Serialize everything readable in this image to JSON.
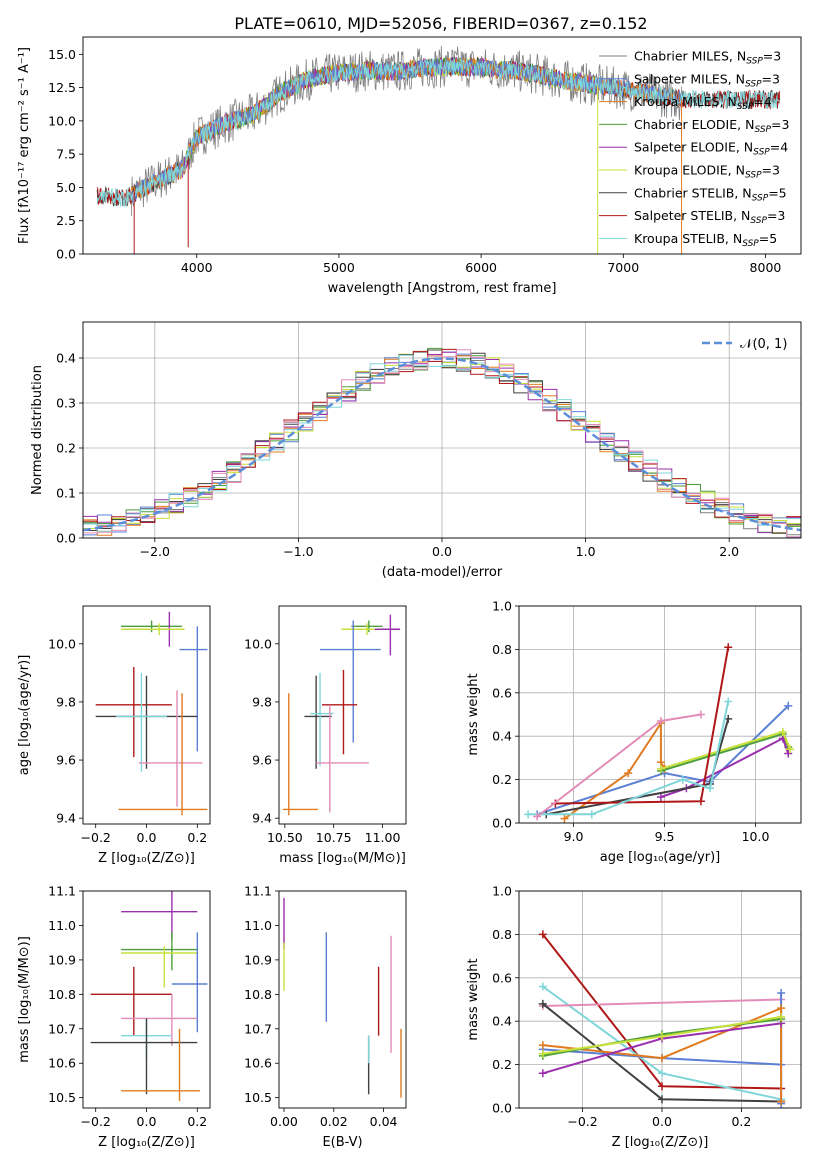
{
  "figure_title": "PLATE=0610, MJD=52056, FIBERID=0367, z=0.152",
  "colors": {
    "Chabrier MILES": "#808080",
    "Salpeter MILES": "#5b7fd4",
    "Kroupa MILES": "#e07b20",
    "Chabrier ELODIE": "#4d9e3c",
    "Salpeter ELODIE": "#9b2fae",
    "Kroupa ELODIE": "#c9e03a",
    "Chabrier STELIB": "#404040",
    "Salpeter STELIB": "#b01818",
    "Kroupa STELIB": "#7fd6d9",
    "pink": "#e38cb8",
    "normal_curve": "#5b8fd9"
  },
  "chart_data": [
    {
      "id": "spectrum",
      "type": "line",
      "xlabel": "wavelength [Angstrom, rest frame]",
      "ylabel": "Flux [fλ10⁻¹⁷ erg cm⁻² s⁻¹ A⁻¹]",
      "xlim": [
        3200,
        8250
      ],
      "ylim": [
        0,
        16.3
      ],
      "xticks": [
        4000,
        5000,
        6000,
        7000,
        8000
      ],
      "yticks": [
        0.0,
        2.5,
        5.0,
        7.5,
        10.0,
        12.5,
        15.0
      ],
      "legend_position": "right",
      "legend": [
        {
          "label": "Chabrier MILES, N",
          "sub": "SSP",
          "suffix": "=3",
          "key": "Chabrier MILES"
        },
        {
          "label": "Salpeter MILES, N",
          "sub": "SSP",
          "suffix": "=3",
          "key": "Salpeter MILES"
        },
        {
          "label": "Kroupa MILES, N",
          "sub": "SSP",
          "suffix": "=4",
          "key": "Kroupa MILES"
        },
        {
          "label": "Chabrier ELODIE, N",
          "sub": "SSP",
          "suffix": "=3",
          "key": "Chabrier ELODIE"
        },
        {
          "label": "Salpeter ELODIE, N",
          "sub": "SSP",
          "suffix": "=4",
          "key": "Salpeter ELODIE"
        },
        {
          "label": "Kroupa ELODIE, N",
          "sub": "SSP",
          "suffix": "=3",
          "key": "Kroupa ELODIE"
        },
        {
          "label": "Chabrier STELIB, N",
          "sub": "SSP",
          "suffix": "=5",
          "key": "Chabrier STELIB"
        },
        {
          "label": "Salpeter STELIB, N",
          "sub": "SSP",
          "suffix": "=3",
          "key": "Salpeter STELIB"
        },
        {
          "label": "Kroupa STELIB, N",
          "sub": "SSP",
          "suffix": "=5",
          "key": "Kroupa STELIB"
        }
      ],
      "continuum": {
        "x": [
          3300,
          3500,
          3700,
          3900,
          4000,
          4200,
          4400,
          4600,
          4800,
          5000,
          5200,
          5400,
          5600,
          5800,
          6000,
          6200,
          6400,
          6600,
          6800,
          7000,
          7200,
          7400
        ],
        "y": [
          4.4,
          4.2,
          5.4,
          6.4,
          8.8,
          9.8,
          10.5,
          12.2,
          13.2,
          13.6,
          13.8,
          13.7,
          14.0,
          14.1,
          14.0,
          13.8,
          13.5,
          13.0,
          12.7,
          12.4,
          12.0,
          11.6
        ]
      },
      "spikes": [
        {
          "x": 3560,
          "y": 0.0
        },
        {
          "x": 3940,
          "y": 0.5
        },
        {
          "x": 6820,
          "y": 0.0
        },
        {
          "x": 7410,
          "y": 0.0
        }
      ]
    },
    {
      "id": "residual_histogram",
      "type": "histogram",
      "xlabel": "(data-model)/error",
      "ylabel": "Normed distribution",
      "xlim": [
        -2.5,
        2.5
      ],
      "ylim": [
        0,
        0.48
      ],
      "xticks": [
        -2,
        -1,
        0,
        1,
        2
      ],
      "yticks": [
        0.0,
        0.1,
        0.2,
        0.3,
        0.4
      ],
      "bin_width": 0.1,
      "legend": "𝒩(0, 1)",
      "legend_position": "top-right",
      "grid": true
    },
    {
      "id": "age_vs_Z",
      "type": "errorbar",
      "xlabel": "Z [log₁₀(Z/Z⊙)]",
      "ylabel": "age  [log₁₀(age/yr)]",
      "xlim": [
        -0.25,
        0.25
      ],
      "ylim": [
        9.38,
        10.13
      ],
      "xticks": [
        -0.2,
        0.0,
        0.2
      ],
      "yticks": [
        9.4,
        9.6,
        9.8,
        10.0
      ],
      "points": [
        {
          "key": "Chabrier ELODIE",
          "x": 0.02,
          "y": 10.06,
          "xerr": [
            0.12,
            0.12
          ],
          "yerr": [
            0.02,
            0.02
          ]
        },
        {
          "key": "Salpeter ELODIE",
          "x": 0.09,
          "y": 10.05,
          "xerr": [
            0.04,
            0.04
          ],
          "yerr": [
            0.06,
            0.06
          ]
        },
        {
          "key": "Kroupa ELODIE",
          "x": 0.05,
          "y": 10.05,
          "xerr": [
            0.15,
            0.1
          ],
          "yerr": [
            0.02,
            0.02
          ]
        },
        {
          "key": "Salpeter MILES",
          "x": 0.2,
          "y": 9.98,
          "xerr": [
            0.07,
            0.04
          ],
          "yerr": [
            0.35,
            0.08
          ]
        },
        {
          "key": "Salpeter STELIB",
          "x": -0.05,
          "y": 9.79,
          "xerr": [
            0.15,
            0.15
          ],
          "yerr": [
            0.18,
            0.13
          ]
        },
        {
          "key": "Chabrier STELIB",
          "x": 0.0,
          "y": 9.75,
          "xerr": [
            0.2,
            0.2
          ],
          "yerr": [
            0.18,
            0.14
          ]
        },
        {
          "key": "Kroupa STELIB",
          "x": -0.02,
          "y": 9.75,
          "xerr": [
            0.1,
            0.1
          ],
          "yerr": [
            0.19,
            0.15
          ]
        },
        {
          "key": "pink",
          "x": 0.12,
          "y": 9.59,
          "xerr": [
            0.15,
            0.1
          ],
          "yerr": [
            0.15,
            0.25
          ]
        },
        {
          "key": "Kroupa MILES",
          "x": 0.14,
          "y": 9.43,
          "xerr": [
            0.25,
            0.1
          ],
          "yerr": [
            0.02,
            0.4
          ]
        }
      ]
    },
    {
      "id": "age_vs_mass",
      "type": "errorbar",
      "xlabel": "mass [log₁₀(M/M⊙)]",
      "ylabel": "",
      "xlim": [
        10.47,
        11.12
      ],
      "ylim": [
        9.38,
        10.13
      ],
      "xticks": [
        10.5,
        10.75,
        11.0
      ],
      "xtick_labels": [
        "10.50",
        "10.75",
        "11.00"
      ],
      "yticks": [
        9.4,
        9.6,
        9.8,
        10.0
      ],
      "points": [
        {
          "key": "Chabrier ELODIE",
          "x": 10.93,
          "y": 10.06,
          "xerr": [
            0.09,
            0.07
          ],
          "yerr": [
            0.02,
            0.02
          ]
        },
        {
          "key": "Salpeter ELODIE",
          "x": 11.04,
          "y": 10.05,
          "xerr": [
            0.08,
            0.05
          ],
          "yerr": [
            0.09,
            0.05
          ]
        },
        {
          "key": "Kroupa ELODIE",
          "x": 10.92,
          "y": 10.05,
          "xerr": [
            0.13,
            0.04
          ],
          "yerr": [
            0.02,
            0.02
          ]
        },
        {
          "key": "Salpeter MILES",
          "x": 10.85,
          "y": 9.98,
          "xerr": [
            0.17,
            0.14
          ],
          "yerr": [
            0.32,
            0.1
          ]
        },
        {
          "key": "Salpeter STELIB",
          "x": 10.8,
          "y": 9.79,
          "xerr": [
            0.11,
            0.07
          ],
          "yerr": [
            0.17,
            0.12
          ]
        },
        {
          "key": "Chabrier STELIB",
          "x": 10.66,
          "y": 9.75,
          "xerr": [
            0.06,
            0.08
          ],
          "yerr": [
            0.18,
            0.14
          ]
        },
        {
          "key": "Kroupa STELIB",
          "x": 10.68,
          "y": 9.76,
          "xerr": [
            0.05,
            0.07
          ],
          "yerr": [
            0.18,
            0.14
          ]
        },
        {
          "key": "pink",
          "x": 10.73,
          "y": 9.59,
          "xerr": [
            0.07,
            0.2
          ],
          "yerr": [
            0.17,
            0.2
          ]
        },
        {
          "key": "Kroupa MILES",
          "x": 10.52,
          "y": 9.43,
          "xerr": [
            0.03,
            0.15
          ],
          "yerr": [
            0.02,
            0.4
          ]
        }
      ]
    },
    {
      "id": "mass_weight_vs_age",
      "type": "line",
      "xlabel": "age  [log₁₀(age/yr)]",
      "ylabel": "mass weight",
      "xlim": [
        8.7,
        10.25
      ],
      "ylim": [
        0,
        1.0
      ],
      "xticks": [
        9.0,
        9.5,
        10.0
      ],
      "yticks": [
        0.0,
        0.2,
        0.4,
        0.6,
        0.8,
        1.0
      ],
      "grid": true,
      "series": [
        {
          "key": "Salpeter MILES",
          "x": [
            8.8,
            9.5,
            9.75,
            10.18
          ],
          "y": [
            0.04,
            0.23,
            0.19,
            0.54
          ]
        },
        {
          "key": "Kroupa MILES",
          "x": [
            8.95,
            9.3,
            9.48,
            9.48,
            9.5,
            9.5
          ],
          "y": [
            0.02,
            0.23,
            0.46,
            0.28,
            0.25,
            0.25
          ]
        },
        {
          "key": "Chabrier ELODIE",
          "x": [
            9.48,
            10.15,
            10.18
          ],
          "y": [
            0.24,
            0.41,
            0.35
          ]
        },
        {
          "key": "Salpeter ELODIE",
          "x": [
            9.48,
            9.62,
            10.15,
            10.18
          ],
          "y": [
            0.12,
            0.16,
            0.39,
            0.32
          ]
        },
        {
          "key": "Kroupa ELODIE",
          "x": [
            9.48,
            10.15,
            10.19
          ],
          "y": [
            0.25,
            0.42,
            0.34
          ]
        },
        {
          "key": "Chabrier STELIB",
          "x": [
            8.85,
            9.75,
            9.85
          ],
          "y": [
            0.04,
            0.18,
            0.48
          ]
        },
        {
          "key": "Salpeter STELIB",
          "x": [
            8.9,
            9.7,
            9.85
          ],
          "y": [
            0.09,
            0.1,
            0.81
          ]
        },
        {
          "key": "Kroupa STELIB",
          "x": [
            8.75,
            9.1,
            9.6,
            9.75,
            9.85
          ],
          "y": [
            0.04,
            0.04,
            0.2,
            0.16,
            0.56
          ]
        },
        {
          "key": "pink",
          "x": [
            8.8,
            9.48,
            9.7
          ],
          "y": [
            0.03,
            0.47,
            0.5
          ]
        }
      ]
    },
    {
      "id": "mass_vs_Z",
      "type": "errorbar",
      "xlabel": "Z [log₁₀(Z/Z⊙)]",
      "ylabel": "mass [log₁₀(M/M⊙)]",
      "xlim": [
        -0.25,
        0.25
      ],
      "ylim": [
        10.47,
        11.1
      ],
      "xticks": [
        -0.2,
        0.0,
        0.2
      ],
      "yticks": [
        10.5,
        10.6,
        10.7,
        10.8,
        10.9,
        11.0,
        11.1
      ],
      "points": [
        {
          "key": "Salpeter ELODIE",
          "x": 0.1,
          "y": 11.04,
          "xerr": [
            0.2,
            0.1
          ],
          "yerr": [
            0.08,
            0.06
          ]
        },
        {
          "key": "Chabrier ELODIE",
          "x": 0.1,
          "y": 10.93,
          "xerr": [
            0.2,
            0.1
          ],
          "yerr": [
            0.06,
            0.05
          ]
        },
        {
          "key": "Kroupa ELODIE",
          "x": 0.07,
          "y": 10.92,
          "xerr": [
            0.17,
            0.13
          ],
          "yerr": [
            0.1,
            0.02
          ]
        },
        {
          "key": "Salpeter MILES",
          "x": 0.2,
          "y": 10.83,
          "xerr": [
            0.1,
            0.04
          ],
          "yerr": [
            0.14,
            0.15
          ]
        },
        {
          "key": "Salpeter STELIB",
          "x": -0.05,
          "y": 10.8,
          "xerr": [
            0.17,
            0.15
          ],
          "yerr": [
            0.12,
            0.08
          ]
        },
        {
          "key": "pink",
          "x": 0.1,
          "y": 10.73,
          "xerr": [
            0.2,
            0.1
          ],
          "yerr": [
            0.08,
            0.07
          ]
        },
        {
          "key": "Kroupa STELIB",
          "x": 0.0,
          "y": 10.68,
          "xerr": [
            0.1,
            0.1
          ],
          "yerr": [
            0.07,
            0.05
          ]
        },
        {
          "key": "Chabrier STELIB",
          "x": 0.0,
          "y": 10.66,
          "xerr": [
            0.22,
            0.2
          ],
          "yerr": [
            0.15,
            0.07
          ]
        },
        {
          "key": "Kroupa MILES",
          "x": 0.13,
          "y": 10.52,
          "xerr": [
            0.23,
            0.08
          ],
          "yerr": [
            0.03,
            0.18
          ]
        }
      ]
    },
    {
      "id": "mass_vs_ebv",
      "type": "errorbar",
      "xlabel": "E(B-V)",
      "ylabel": "",
      "xlim": [
        -0.002,
        0.049
      ],
      "ylim": [
        10.47,
        11.1
      ],
      "xticks": [
        0.0,
        0.02,
        0.04
      ],
      "xtick_labels": [
        "0.00",
        "0.02",
        "0.04"
      ],
      "yticks": [
        10.5,
        10.6,
        10.7,
        10.8,
        10.9,
        11.0,
        11.1
      ],
      "points": [
        {
          "key": "Salpeter ELODIE",
          "x": 0.0,
          "y": 11.0,
          "xerr": [
            0,
            0
          ],
          "yerr": [
            0.07,
            0.08
          ]
        },
        {
          "key": "Kroupa ELODIE",
          "x": 0.0,
          "y": 10.89,
          "xerr": [
            0,
            0
          ],
          "yerr": [
            0.08,
            0.06
          ]
        },
        {
          "key": "Salpeter MILES",
          "x": 0.017,
          "y": 10.85,
          "xerr": [
            0,
            0
          ],
          "yerr": [
            0.13,
            0.13
          ]
        },
        {
          "key": "Chabrier STELIB",
          "x": 0.034,
          "y": 10.6,
          "xerr": [
            0,
            0
          ],
          "yerr": [
            0.09,
            0.08
          ]
        },
        {
          "key": "Kroupa STELIB",
          "x": 0.034,
          "y": 10.66,
          "xerr": [
            0,
            0
          ],
          "yerr": [
            0.06,
            0.02
          ]
        },
        {
          "key": "Salpeter STELIB",
          "x": 0.038,
          "y": 10.78,
          "xerr": [
            0,
            0
          ],
          "yerr": [
            0.1,
            0.1
          ]
        },
        {
          "key": "pink",
          "x": 0.043,
          "y": 10.8,
          "xerr": [
            0,
            0
          ],
          "yerr": [
            0.17,
            0.17
          ]
        },
        {
          "key": "Kroupa MILES",
          "x": 0.047,
          "y": 10.6,
          "xerr": [
            0,
            0
          ],
          "yerr": [
            0.1,
            0.1
          ]
        }
      ]
    },
    {
      "id": "mass_weight_vs_Z",
      "type": "line",
      "xlabel": "Z [log₁₀(Z/Z⊙)]",
      "ylabel": "mass weight",
      "xlim": [
        -0.36,
        0.35
      ],
      "ylim": [
        0,
        1.0
      ],
      "xticks": [
        -0.2,
        0.0,
        0.2
      ],
      "yticks": [
        0.0,
        0.2,
        0.4,
        0.6,
        0.8,
        1.0
      ],
      "grid": true,
      "series": [
        {
          "key": "Salpeter STELIB",
          "x": [
            -0.3,
            0.0,
            0.3
          ],
          "y": [
            0.8,
            0.1,
            0.09
          ]
        },
        {
          "key": "Kroupa STELIB",
          "x": [
            -0.3,
            0.0,
            0.3
          ],
          "y": [
            0.56,
            0.16,
            0.04
          ]
        },
        {
          "key": "pink",
          "x": [
            -0.3,
            0.3
          ],
          "y": [
            0.47,
            0.5
          ]
        },
        {
          "key": "Chabrier STELIB",
          "x": [
            -0.3,
            0.0,
            0.3
          ],
          "y": [
            0.48,
            0.04,
            0.03
          ]
        },
        {
          "key": "Salpeter MILES",
          "x": [
            -0.3,
            0.0,
            0.3,
            0.3,
            0.3
          ],
          "y": [
            0.27,
            0.23,
            0.2,
            0.53,
            0.02
          ]
        },
        {
          "key": "Kroupa MILES",
          "x": [
            -0.3,
            0.0,
            0.3,
            0.3
          ],
          "y": [
            0.29,
            0.23,
            0.46,
            0.03
          ]
        },
        {
          "key": "Salpeter ELODIE",
          "x": [
            -0.3,
            0.0,
            0.3
          ],
          "y": [
            0.16,
            0.32,
            0.39
          ]
        },
        {
          "key": "Chabrier ELODIE",
          "x": [
            -0.3,
            0.0,
            0.3
          ],
          "y": [
            0.24,
            0.34,
            0.41
          ]
        },
        {
          "key": "Kroupa ELODIE",
          "x": [
            -0.3,
            0.0,
            0.3
          ],
          "y": [
            0.25,
            0.33,
            0.42
          ]
        }
      ]
    }
  ]
}
